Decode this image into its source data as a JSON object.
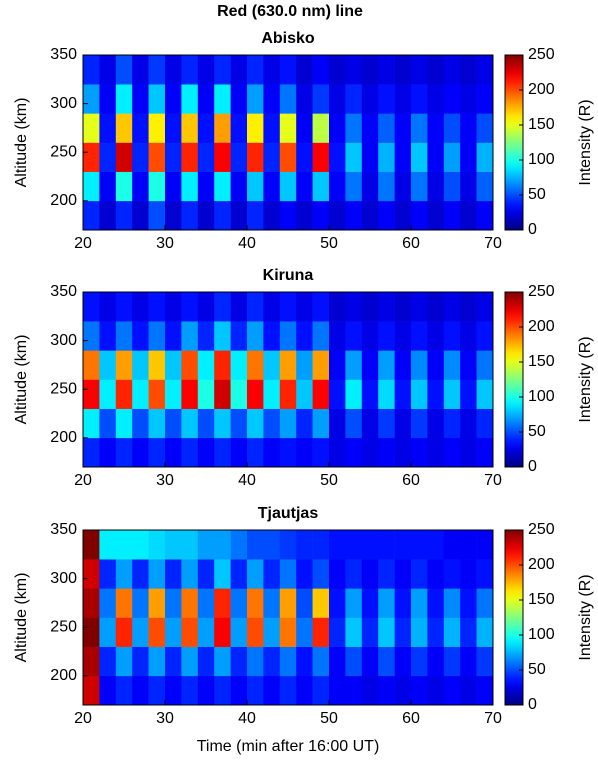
{
  "title": "Red (630.0 nm) line",
  "chart_data": [
    {
      "type": "heatmap",
      "title": "Abisko",
      "ylabel": "Altitude (km)",
      "colorbar_label": "Intensity (R)",
      "x": [
        21,
        23,
        25,
        27,
        29,
        31,
        33,
        35,
        37,
        39,
        41,
        43,
        45,
        47,
        49,
        51,
        53,
        55,
        57,
        59,
        61,
        63,
        65,
        67,
        69
      ],
      "y": [
        185,
        215,
        245,
        275,
        305,
        335
      ],
      "z": [
        [
          40,
          20,
          40,
          20,
          50,
          20,
          40,
          20,
          40,
          20,
          40,
          20,
          30,
          20,
          30,
          20,
          30,
          20,
          30,
          20,
          30,
          20,
          30,
          20,
          30
        ],
        [
          90,
          30,
          100,
          30,
          100,
          30,
          90,
          30,
          90,
          30,
          80,
          30,
          80,
          30,
          80,
          30,
          60,
          25,
          60,
          25,
          60,
          25,
          50,
          25,
          55
        ],
        [
          210,
          40,
          230,
          40,
          200,
          40,
          210,
          40,
          220,
          40,
          210,
          40,
          200,
          35,
          220,
          35,
          80,
          30,
          75,
          30,
          80,
          30,
          70,
          30,
          75
        ],
        [
          150,
          35,
          170,
          35,
          160,
          35,
          170,
          35,
          180,
          35,
          160,
          35,
          150,
          30,
          140,
          30,
          60,
          30,
          55,
          30,
          60,
          30,
          50,
          30,
          50
        ],
        [
          70,
          30,
          90,
          30,
          80,
          30,
          90,
          30,
          90,
          30,
          70,
          30,
          60,
          25,
          45,
          25,
          40,
          25,
          35,
          25,
          35,
          25,
          30,
          25,
          30
        ],
        [
          40,
          25,
          50,
          25,
          45,
          25,
          40,
          25,
          40,
          25,
          40,
          25,
          35,
          20,
          30,
          20,
          25,
          20,
          25,
          20,
          25,
          20,
          25,
          20,
          25
        ]
      ],
      "xlim": [
        20,
        70
      ],
      "xticks": [
        20,
        30,
        40,
        50,
        60,
        70
      ],
      "ylim": [
        170,
        350
      ],
      "yticks": [
        200,
        250,
        300,
        350
      ],
      "zlim": [
        0,
        250
      ],
      "zticks": [
        0,
        50,
        100,
        150,
        200,
        250
      ],
      "colormap": "jet"
    },
    {
      "type": "heatmap",
      "title": "Kiruna",
      "ylabel": "Altitude (km)",
      "colorbar_label": "Intensity (R)",
      "x": [
        21,
        23,
        25,
        27,
        29,
        31,
        33,
        35,
        37,
        39,
        41,
        43,
        45,
        47,
        49,
        51,
        53,
        55,
        57,
        59,
        61,
        63,
        65,
        67,
        69
      ],
      "y": [
        185,
        215,
        245,
        275,
        305,
        335
      ],
      "z": [
        [
          40,
          30,
          40,
          30,
          40,
          30,
          40,
          30,
          40,
          30,
          40,
          30,
          35,
          30,
          35,
          25,
          30,
          25,
          30,
          25,
          30,
          25,
          30,
          25,
          30
        ],
        [
          90,
          50,
          90,
          50,
          80,
          50,
          80,
          50,
          80,
          50,
          80,
          50,
          70,
          40,
          70,
          25,
          50,
          25,
          45,
          25,
          45,
          25,
          40,
          25,
          40
        ],
        [
          220,
          90,
          210,
          90,
          200,
          90,
          220,
          100,
          230,
          100,
          220,
          90,
          210,
          80,
          220,
          35,
          90,
          35,
          85,
          35,
          80,
          35,
          80,
          35,
          80
        ],
        [
          190,
          80,
          180,
          80,
          170,
          80,
          200,
          90,
          210,
          90,
          190,
          80,
          180,
          70,
          180,
          30,
          70,
          30,
          70,
          30,
          65,
          30,
          65,
          30,
          60
        ],
        [
          60,
          35,
          60,
          35,
          60,
          35,
          70,
          40,
          80,
          40,
          70,
          35,
          60,
          35,
          60,
          25,
          35,
          25,
          35,
          25,
          35,
          25,
          35,
          25,
          35
        ],
        [
          35,
          25,
          35,
          25,
          35,
          25,
          35,
          25,
          40,
          25,
          40,
          25,
          35,
          25,
          35,
          20,
          25,
          20,
          25,
          20,
          25,
          20,
          25,
          20,
          25
        ]
      ],
      "xlim": [
        20,
        70
      ],
      "xticks": [
        20,
        30,
        40,
        50,
        60,
        70
      ],
      "ylim": [
        170,
        350
      ],
      "yticks": [
        200,
        250,
        300,
        350
      ],
      "zlim": [
        0,
        250
      ],
      "zticks": [
        0,
        50,
        100,
        150,
        200,
        250
      ],
      "colormap": "jet"
    },
    {
      "type": "heatmap",
      "title": "Tjautjas",
      "ylabel": "Altitude (km)",
      "colorbar_label": "Intensity (R)",
      "xlabel": "Time (min after 16:00 UT)",
      "x": [
        21,
        23,
        25,
        27,
        29,
        31,
        33,
        35,
        37,
        39,
        41,
        43,
        45,
        47,
        49,
        51,
        53,
        55,
        57,
        59,
        61,
        63,
        65,
        67,
        69
      ],
      "y": [
        185,
        215,
        245,
        275,
        305,
        335
      ],
      "z": [
        [
          230,
          30,
          40,
          30,
          40,
          30,
          40,
          30,
          40,
          30,
          40,
          30,
          40,
          30,
          40,
          30,
          30,
          25,
          30,
          25,
          30,
          25,
          30,
          25,
          30
        ],
        [
          240,
          40,
          70,
          40,
          70,
          40,
          70,
          40,
          70,
          40,
          60,
          40,
          60,
          35,
          60,
          30,
          50,
          30,
          50,
          30,
          45,
          30,
          45,
          30,
          45
        ],
        [
          250,
          70,
          210,
          70,
          200,
          70,
          200,
          70,
          220,
          70,
          200,
          70,
          190,
          60,
          210,
          40,
          80,
          40,
          80,
          40,
          75,
          40,
          75,
          40,
          75
        ],
        [
          240,
          60,
          190,
          60,
          180,
          60,
          190,
          60,
          210,
          60,
          190,
          60,
          180,
          50,
          170,
          35,
          70,
          35,
          70,
          35,
          70,
          35,
          65,
          35,
          60
        ],
        [
          230,
          40,
          70,
          40,
          70,
          40,
          70,
          40,
          80,
          40,
          70,
          40,
          60,
          35,
          50,
          30,
          40,
          30,
          40,
          30,
          40,
          30,
          35,
          30,
          35
        ],
        [
          250,
          90,
          90,
          90,
          85,
          80,
          80,
          70,
          70,
          60,
          50,
          50,
          45,
          40,
          40,
          35,
          35,
          35,
          35,
          35,
          35,
          35,
          30,
          30,
          30
        ]
      ],
      "xlim": [
        20,
        70
      ],
      "xticks": [
        20,
        30,
        40,
        50,
        60,
        70
      ],
      "ylim": [
        170,
        350
      ],
      "yticks": [
        200,
        250,
        300,
        350
      ],
      "zlim": [
        0,
        250
      ],
      "zticks": [
        0,
        50,
        100,
        150,
        200,
        250
      ],
      "colormap": "jet"
    }
  ]
}
